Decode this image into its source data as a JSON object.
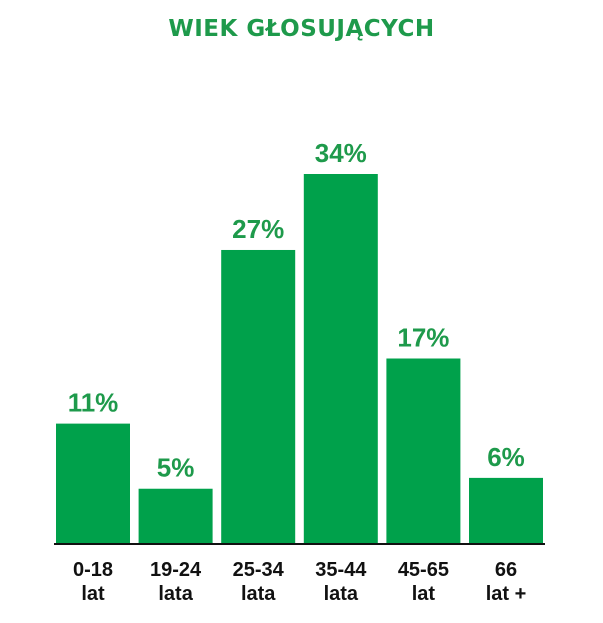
{
  "chart_data": {
    "type": "bar",
    "title": "WIEK GŁOSUJĄCYCH",
    "categories": [
      [
        "0-18",
        "lat"
      ],
      [
        "19-24",
        "lata"
      ],
      [
        "25-34",
        "lata"
      ],
      [
        "35-44",
        "lata"
      ],
      [
        "45-65",
        "lat"
      ],
      [
        "66",
        "lat +"
      ]
    ],
    "values": [
      11,
      5,
      27,
      34,
      17,
      6
    ],
    "value_labels": [
      "11%",
      "5%",
      "27%",
      "34%",
      "17%",
      "6%"
    ],
    "unit": "%",
    "ylim": [
      0,
      34
    ],
    "grid": false,
    "legend": "none"
  },
  "colors": {
    "bar": "#00a14b",
    "title": "#1e9a4b",
    "value_label": "#1e9a4b",
    "category_label": "#111111",
    "axis": "#111111"
  }
}
